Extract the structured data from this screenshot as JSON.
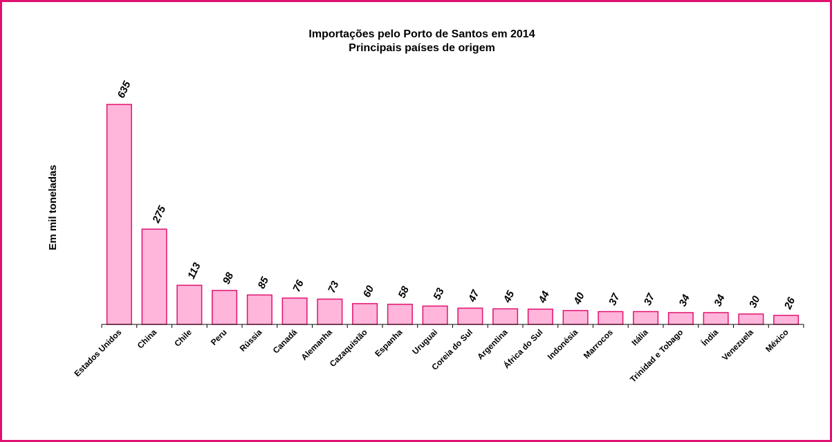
{
  "chart_data": {
    "type": "bar",
    "title": "Importações pelo Porto de Santos em 2014",
    "subtitle": "Principais países de origem",
    "y_label": "Em mil toneladas",
    "categories": [
      "Estados Unidos",
      "China",
      "Chile",
      "Peru",
      "Rússia",
      "Canadá",
      "Alemanha",
      "Cazaquistão",
      "Espanha",
      "Uruguai",
      "Coreia do Sul",
      "Argentina",
      "África do Sul",
      "Indonésia",
      "Marrocos",
      "Itália",
      "Trinidad e Tobago",
      "Índia",
      "Venezuela",
      "México"
    ],
    "values": [
      635,
      275,
      113,
      98,
      85,
      76,
      73,
      60,
      58,
      53,
      47,
      45,
      44,
      40,
      37,
      37,
      34,
      34,
      30,
      26
    ],
    "color": "#ffb6da",
    "edge_color": "#e0106f",
    "ylim": [
      0,
      635
    ]
  }
}
